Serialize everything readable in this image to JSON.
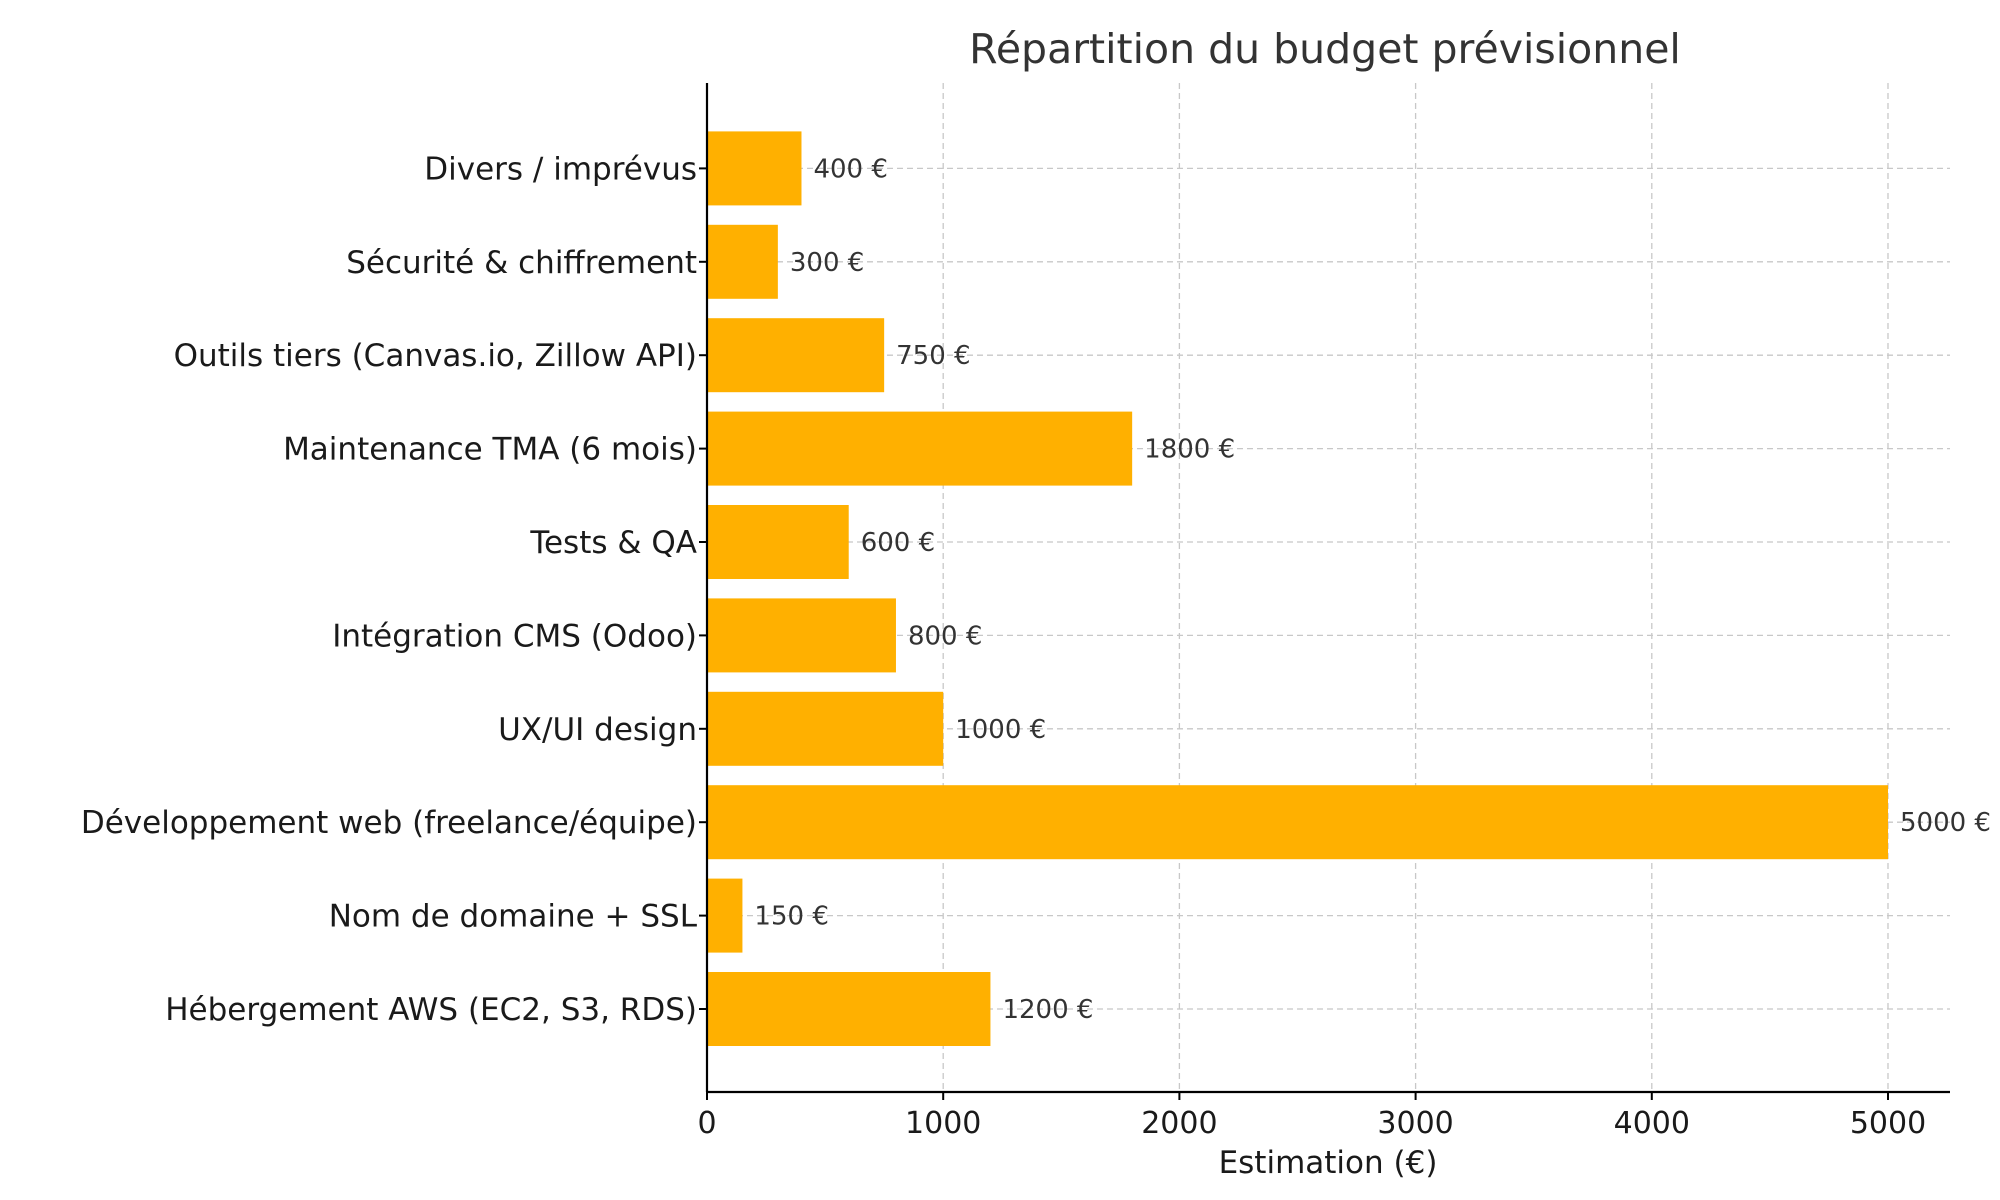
{
  "chart_data": {
    "type": "bar",
    "orientation": "horizontal",
    "title": "Répartition du budget prévisionnel",
    "xlabel": "Estimation (€)",
    "ylabel": "",
    "xlim": [
      0,
      5260
    ],
    "xticks": [
      0,
      1000,
      2000,
      3000,
      4000,
      5000
    ],
    "grid": true,
    "bar_color": "#ffb000",
    "value_suffix": " €",
    "categories": [
      "Hébergement AWS (EC2, S3, RDS)",
      "Nom de domaine + SSL",
      "Développement web (freelance/équipe)",
      "UX/UI design",
      "Intégration CMS (Odoo)",
      "Tests & QA",
      "Maintenance TMA (6 mois)",
      "Outils tiers (Canvas.io, Zillow API)",
      "Sécurité & chiffrement",
      "Divers / imprévus"
    ],
    "values": [
      1200,
      150,
      5000,
      1000,
      800,
      600,
      1800,
      750,
      300,
      400
    ]
  }
}
